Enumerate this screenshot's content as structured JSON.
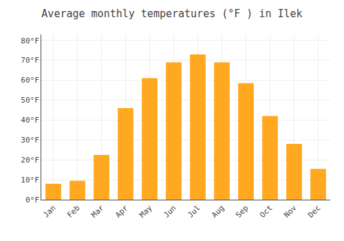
{
  "chart_data": {
    "type": "bar",
    "title": "Average monthly temperatures (°F ) in Ilek",
    "categories": [
      "Jan",
      "Feb",
      "Mar",
      "Apr",
      "May",
      "Jun",
      "Jul",
      "Aug",
      "Sep",
      "Oct",
      "Nov",
      "Dec"
    ],
    "values": [
      8,
      9.5,
      22.5,
      46,
      61,
      69,
      73,
      69,
      58.5,
      42,
      28,
      15.5
    ],
    "color": "#FFA820",
    "ylim": [
      0,
      83
    ],
    "yticks": [
      {
        "value": 0,
        "label": "0°F"
      },
      {
        "value": 10,
        "label": "10°F"
      },
      {
        "value": 20,
        "label": "20°F"
      },
      {
        "value": 30,
        "label": "30°F"
      },
      {
        "value": 40,
        "label": "40°F"
      },
      {
        "value": 50,
        "label": "50°F"
      },
      {
        "value": 60,
        "label": "60°F"
      },
      {
        "value": 70,
        "label": "70°F"
      },
      {
        "value": 80,
        "label": "80°F"
      }
    ],
    "grid": true
  }
}
